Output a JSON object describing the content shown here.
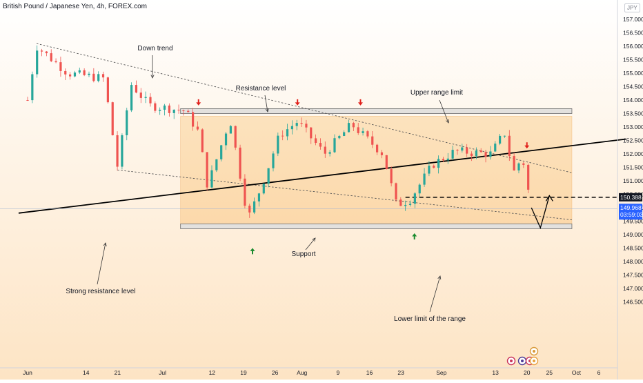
{
  "symbol_title": "British Pound / Japanese Yen, 4h, FOREX.com",
  "currency_badge": "JPY",
  "colors": {
    "background_top": "#ffffff",
    "background_bottom": "#fde4c4",
    "range_fill": "#fbd9a8",
    "up_candle": "#26a69a",
    "down_candle": "#ef5350",
    "trendline": "#000000",
    "current_price_label": "#2962ff",
    "marker_up": "#1a8a2e",
    "marker_down": "#e0201b"
  },
  "chart_data": {
    "type": "candlestick",
    "title": "British Pound / Japanese Yen, 4h, FOREX.com",
    "y_range": [
      146.3,
      157.8
    ],
    "y_ticks": [
      "157.000",
      "156.500",
      "156.000",
      "155.500",
      "155.000",
      "154.500",
      "154.000",
      "153.500",
      "153.000",
      "152.500",
      "152.000",
      "151.500",
      "151.000",
      "150.500",
      "150.000",
      "149.500",
      "149.000",
      "148.500",
      "148.000",
      "147.500",
      "147.000",
      "146.500"
    ],
    "x_ticks": [
      "Jun",
      "14",
      "21",
      "Jul",
      "12",
      "19",
      "26",
      "Aug",
      "9",
      "16",
      "23",
      "Sep",
      "13",
      "20",
      "25",
      "Oct",
      "6"
    ],
    "approx_close_path": [
      {
        "date": "Jun 1",
        "price": 154.0
      },
      {
        "date": "Jun 3",
        "price": 156.0
      },
      {
        "date": "Jun 10",
        "price": 155.0
      },
      {
        "date": "Jun 18",
        "price": 154.8
      },
      {
        "date": "Jun 21",
        "price": 151.5
      },
      {
        "date": "Jun 24",
        "price": 154.6
      },
      {
        "date": "Jun 28",
        "price": 153.8
      },
      {
        "date": "Jul 6",
        "price": 153.6
      },
      {
        "date": "Jul 9",
        "price": 152.8
      },
      {
        "date": "Jul 11",
        "price": 150.8
      },
      {
        "date": "Jul 16",
        "price": 153.3
      },
      {
        "date": "Jul 20",
        "price": 149.6
      },
      {
        "date": "Jul 23",
        "price": 150.8
      },
      {
        "date": "Jul 27",
        "price": 152.7
      },
      {
        "date": "Jul 31",
        "price": 153.2
      },
      {
        "date": "Aug 6",
        "price": 152.0
      },
      {
        "date": "Aug 12",
        "price": 153.1
      },
      {
        "date": "Aug 19",
        "price": 152.0
      },
      {
        "date": "Aug 22",
        "price": 150.1
      },
      {
        "date": "Aug 25",
        "price": 150.3
      },
      {
        "date": "Aug 30",
        "price": 151.6
      },
      {
        "date": "Sep 4",
        "price": 152.1
      },
      {
        "date": "Sep 12",
        "price": 152.0
      },
      {
        "date": "Sep 15",
        "price": 152.8
      },
      {
        "date": "Sep 17",
        "price": 151.3
      },
      {
        "date": "Sep 19",
        "price": 151.9
      },
      {
        "date": "Sep 21",
        "price": 149.97
      }
    ],
    "last_price": "149.968",
    "countdown": "03:59:03",
    "level_label": "150.388",
    "levels": {
      "dashed_level": 150.388,
      "current_price": 149.968,
      "upper_range": {
        "from": 153.5,
        "to": 153.68
      },
      "lower_range": {
        "from": 149.22,
        "to": 149.4
      },
      "range_box": {
        "top": 153.4,
        "bottom": 149.4,
        "start": "Jul 5",
        "end": "Sep 30"
      }
    },
    "lines": [
      {
        "name": "down trend",
        "style": "dotted",
        "from": {
          "date": "Jun 3",
          "price": 156.1
        },
        "to": {
          "date": "Sep 30",
          "price": 151.3
        }
      },
      {
        "name": "lower dotted line",
        "style": "dotted",
        "from": {
          "date": "Jun 21",
          "price": 151.4
        },
        "to": {
          "date": "Sep 30",
          "price": 149.55
        }
      },
      {
        "name": "strong resistance level",
        "style": "solid",
        "from": {
          "date": "May 30",
          "price": 149.8
        },
        "to": {
          "date": "Oct 12",
          "price": 152.55
        }
      }
    ],
    "projection": {
      "start": {
        "date": "Sep 21",
        "price": 150.0
      },
      "low": {
        "date": "Sep 23",
        "price": 149.25
      },
      "high": {
        "date": "Sep 25",
        "price": 150.45
      }
    },
    "annotations": [
      {
        "text": "Down trend"
      },
      {
        "text": "Resistance level"
      },
      {
        "text": "Upper range limit"
      },
      {
        "text": "Support"
      },
      {
        "text": "Strong resistance level"
      },
      {
        "text": "Lower limit of the range"
      }
    ],
    "markers": [
      {
        "dir": "down",
        "date": "Jul 9",
        "price": 153.9
      },
      {
        "dir": "down",
        "date": "Jul 31",
        "price": 153.9
      },
      {
        "dir": "down",
        "date": "Aug 14",
        "price": 153.9
      },
      {
        "dir": "down",
        "date": "Sep 20",
        "price": 152.3
      },
      {
        "dir": "up",
        "date": "Jul 21",
        "price": 148.4
      },
      {
        "dir": "up",
        "date": "Aug 26",
        "price": 148.95
      }
    ],
    "grid": false,
    "y_axis_position": "right"
  }
}
